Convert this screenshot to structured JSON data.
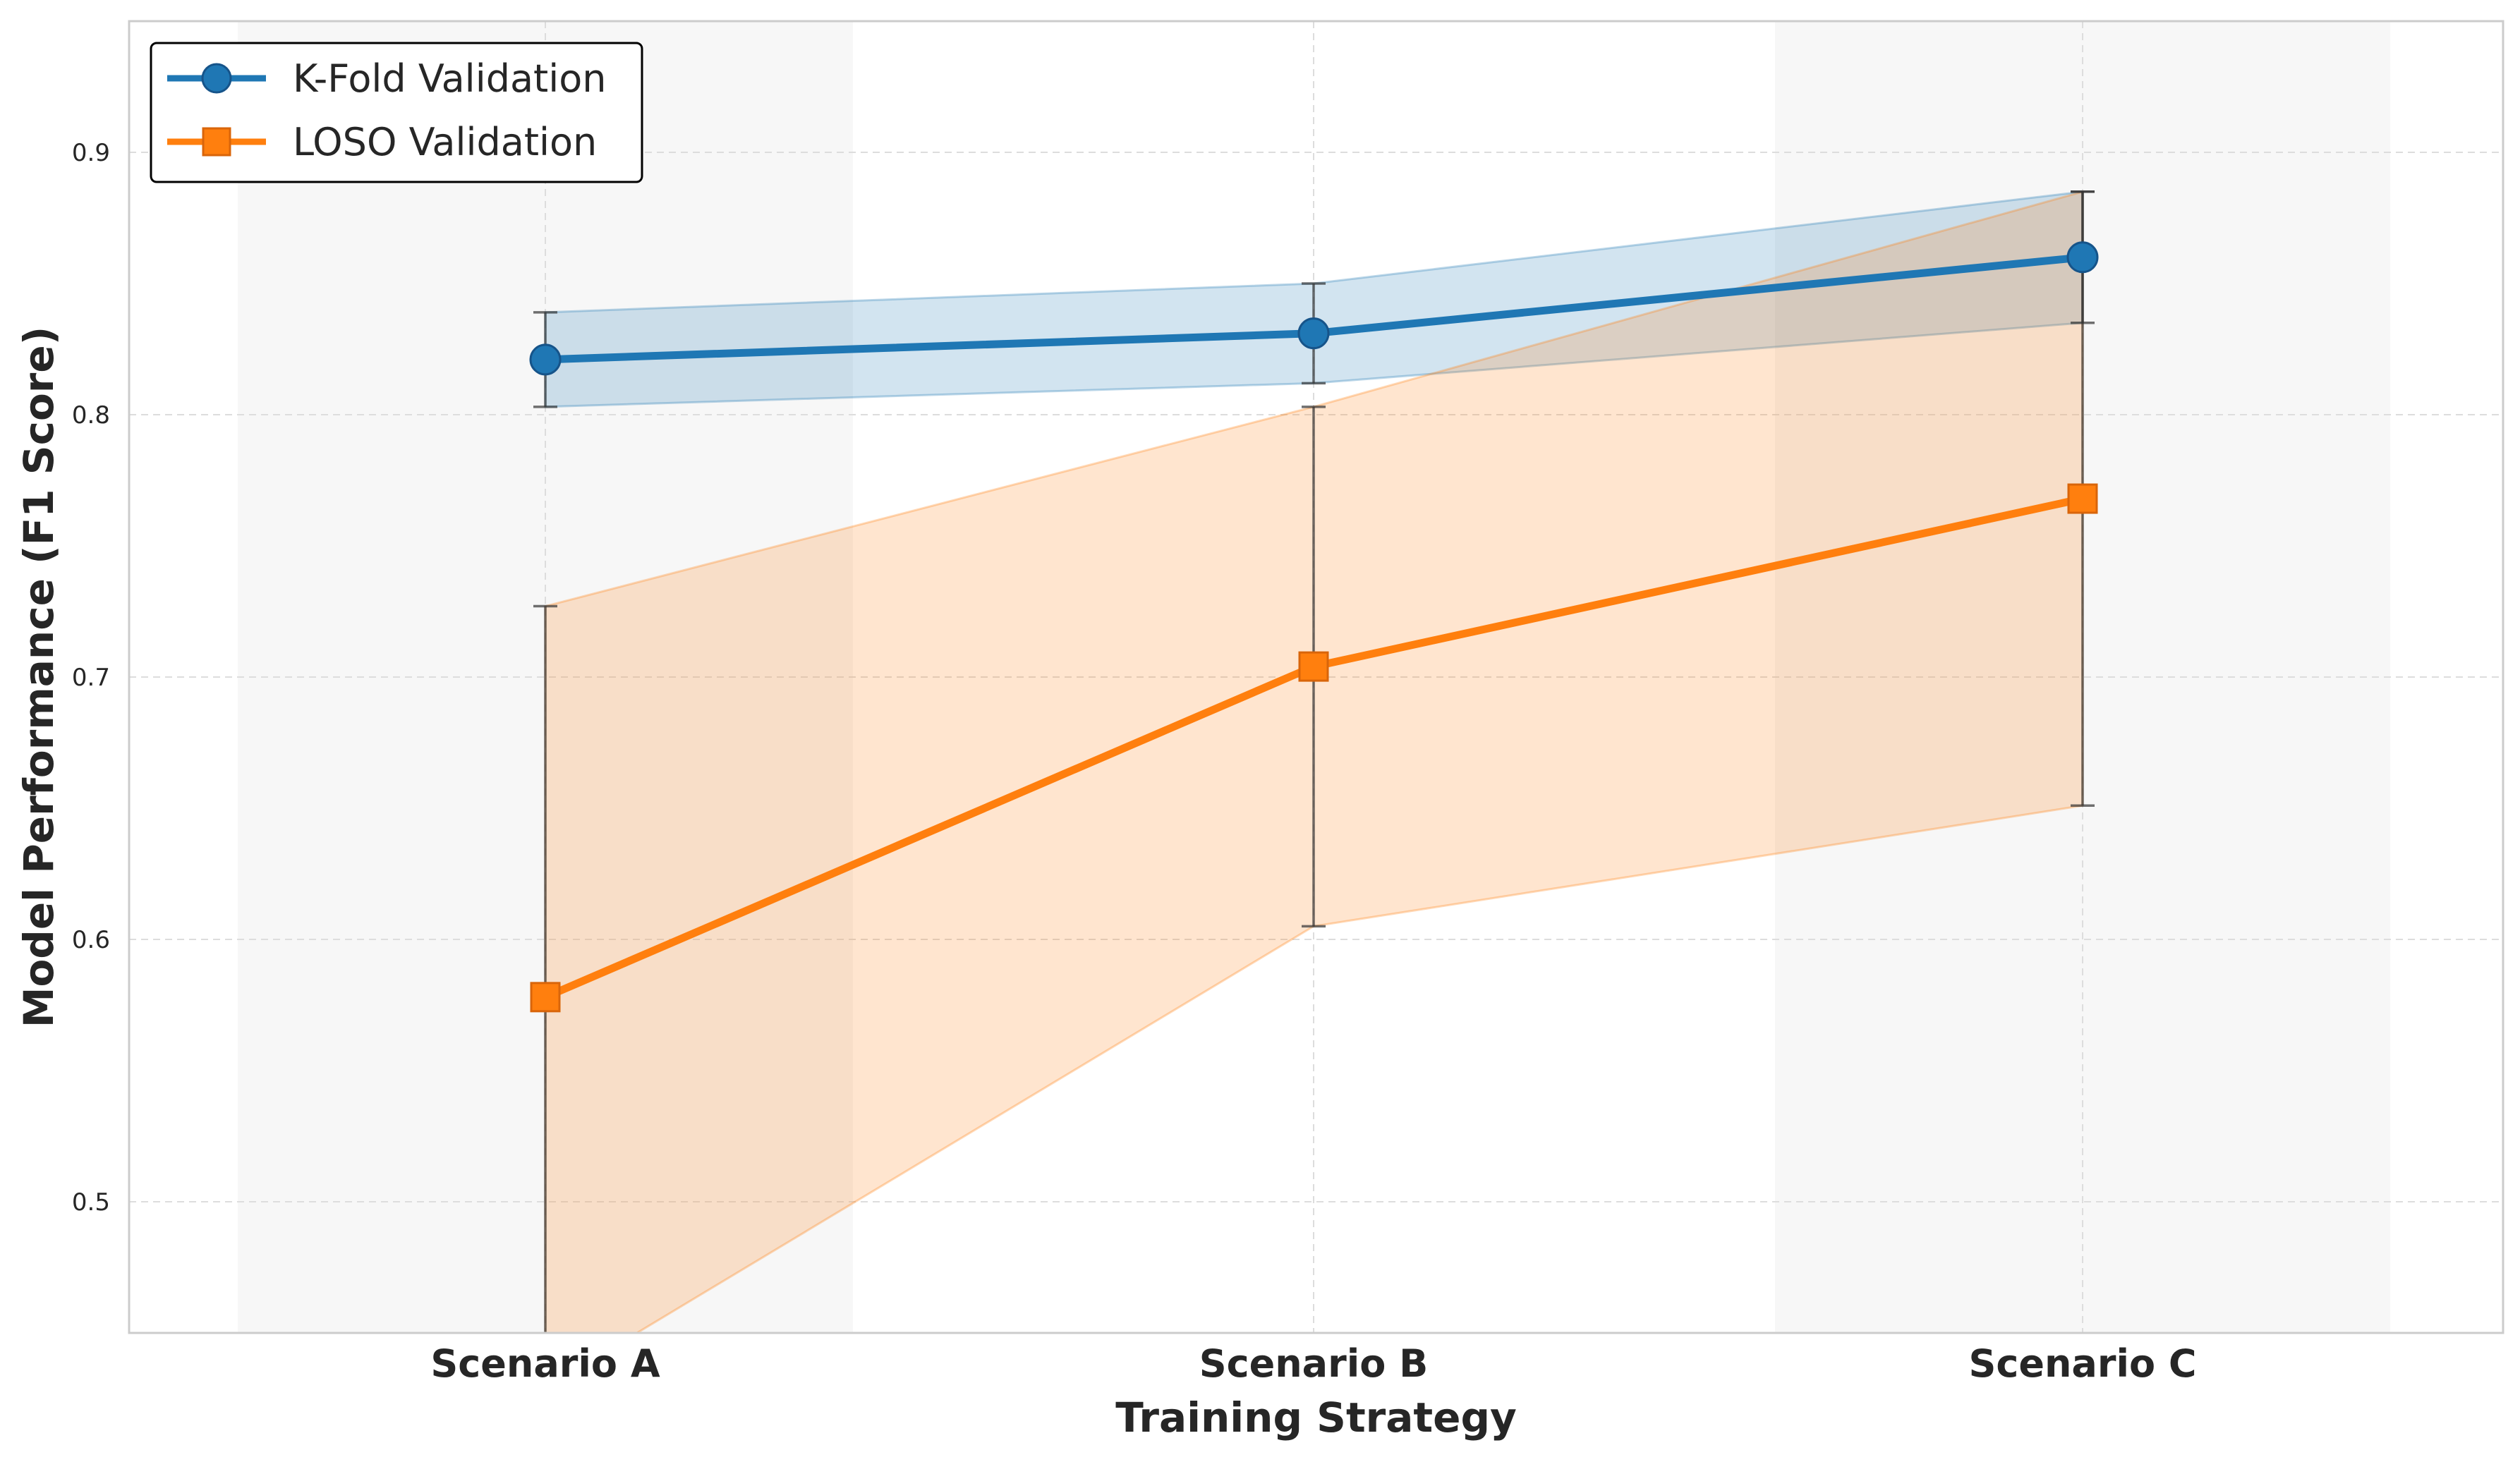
{
  "chart_data": {
    "type": "line",
    "title": "",
    "xlabel": "Training Strategy",
    "ylabel": "Model Performance (F1 Score)",
    "categories": [
      "Scenario A",
      "Scenario B",
      "Scenario C"
    ],
    "ylim": [
      0.45,
      0.95
    ],
    "yticks": [
      0.5,
      0.6,
      0.7,
      0.8,
      0.9
    ],
    "ytick_labels": [
      "0.5",
      "0.6",
      "0.7",
      "0.8",
      "0.9"
    ],
    "grid": true,
    "legend_position": "top-left",
    "highlighted_categories": [
      "Scenario A",
      "Scenario C"
    ],
    "series": [
      {
        "name": "K-Fold Validation",
        "marker": "circle",
        "color": "#1f77b4",
        "values": [
          0.821,
          0.831,
          0.86
        ],
        "errors": [
          0.018,
          0.019,
          0.025
        ]
      },
      {
        "name": "LOSO Validation",
        "marker": "square",
        "color": "#ff7f0e",
        "values": [
          0.578,
          0.704,
          0.768
        ],
        "errors": [
          0.149,
          0.099,
          0.117
        ]
      }
    ]
  }
}
